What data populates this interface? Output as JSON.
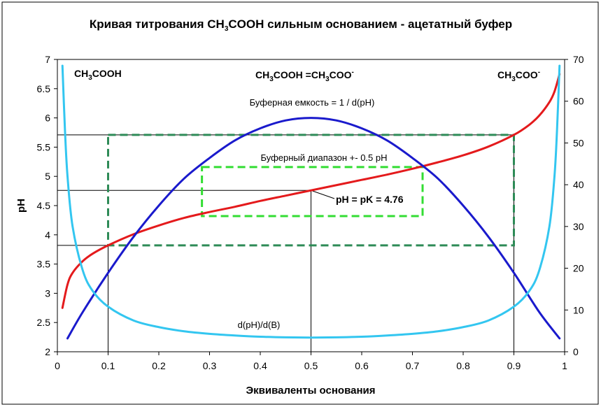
{
  "chart_data": {
    "type": "line",
    "title": {
      "part1": "Кривая титрования CH",
      "sub1": "3",
      "part2": "COOH сильным основанием - ацетатный буфер"
    },
    "xlabel": "Эквиваленты основания",
    "ylabel": "pH",
    "xlim": [
      0,
      1
    ],
    "ylim": [
      2,
      7
    ],
    "y2lim": [
      0,
      70
    ],
    "x_ticks": [
      "0",
      "0.1",
      "0.2",
      "0.3",
      "0.4",
      "0.5",
      "0.6",
      "0.7",
      "0.8",
      "0.9",
      "1"
    ],
    "y_ticks": [
      "2",
      "2.5",
      "3",
      "3.5",
      "4",
      "4.5",
      "5",
      "5.5",
      "6",
      "6.5",
      "7"
    ],
    "y2_ticks": [
      "0",
      "10",
      "20",
      "30",
      "40",
      "50",
      "60",
      "70"
    ],
    "grid": false,
    "legend": "none",
    "series": [
      {
        "color": "#e41a1c",
        "axis": "left",
        "x": [
          0.01,
          0.02,
          0.03,
          0.05,
          0.07,
          0.1,
          0.15,
          0.2,
          0.25,
          0.3,
          0.35,
          0.4,
          0.45,
          0.5,
          0.55,
          0.6,
          0.65,
          0.7,
          0.75,
          0.8,
          0.85,
          0.9,
          0.93,
          0.95,
          0.97,
          0.98,
          0.99
        ],
        "values": [
          2.75,
          3.15,
          3.35,
          3.55,
          3.68,
          3.82,
          4.01,
          4.16,
          4.29,
          4.39,
          4.48,
          4.58,
          4.67,
          4.76,
          4.85,
          4.94,
          5.03,
          5.13,
          5.24,
          5.36,
          5.51,
          5.71,
          5.88,
          6.04,
          6.27,
          6.45,
          6.75
        ]
      },
      {
        "color": "#1a1acc",
        "axis": "right",
        "x": [
          0.02,
          0.05,
          0.1,
          0.15,
          0.2,
          0.25,
          0.3,
          0.35,
          0.4,
          0.45,
          0.5,
          0.55,
          0.6,
          0.65,
          0.7,
          0.75,
          0.8,
          0.85,
          0.9,
          0.95,
          0.99
        ],
        "values": [
          3.2,
          9.5,
          18.9,
          27.5,
          35.0,
          41.5,
          46.4,
          50.6,
          53.5,
          55.4,
          56.0,
          55.4,
          53.5,
          50.6,
          46.4,
          41.5,
          35.0,
          27.5,
          18.9,
          9.5,
          3.2
        ]
      },
      {
        "color": "#33c6f0",
        "axis": "right",
        "x": [
          0.01,
          0.015,
          0.02,
          0.03,
          0.05,
          0.07,
          0.1,
          0.15,
          0.2,
          0.25,
          0.3,
          0.35,
          0.4,
          0.45,
          0.5,
          0.55,
          0.6,
          0.65,
          0.7,
          0.75,
          0.8,
          0.85,
          0.9,
          0.93,
          0.95,
          0.97,
          0.98,
          0.985,
          0.99
        ],
        "values": [
          68.5,
          53,
          42,
          30,
          19.5,
          14.5,
          10.8,
          7.5,
          5.9,
          4.9,
          4.3,
          3.9,
          3.6,
          3.45,
          3.4,
          3.45,
          3.6,
          3.9,
          4.3,
          4.9,
          5.9,
          7.5,
          10.8,
          14.5,
          19.5,
          30,
          42,
          53,
          68.5
        ]
      }
    ],
    "annotations": {
      "left_species": {
        "base": "CH",
        "sub": "3",
        "rest": "COOH"
      },
      "center_species": {
        "base": "CH",
        "sub1": "3",
        "mid": "COOH =CH",
        "sub2": "3",
        "rest": "COO",
        "sup": "-"
      },
      "right_species": {
        "base": "CH",
        "sub": "3",
        "rest": "COO",
        "sup": "-"
      },
      "buffer_capacity": "Буферная емкость = 1 / d(pH)",
      "buffer_range": "Буферный диапазон +- 0.5 pH",
      "pk_label": "pH = pK = 4.76",
      "derivative_label": "d(pH)/d(B)"
    },
    "reference_lines": {
      "pk": {
        "x": 0.5,
        "y": 4.76
      },
      "lower": {
        "x": 0.1,
        "y": 3.82
      },
      "upper": {
        "x": 0.9,
        "y": 5.71
      }
    },
    "boxes": {
      "outer": {
        "x0": 0.1,
        "x1": 0.9,
        "y0": 3.82,
        "y1": 5.71,
        "color": "#2e8b57"
      },
      "inner": {
        "x0": 0.285,
        "x1": 0.72,
        "y0": 4.32,
        "y1": 5.16,
        "color": "#33dd33"
      }
    }
  }
}
